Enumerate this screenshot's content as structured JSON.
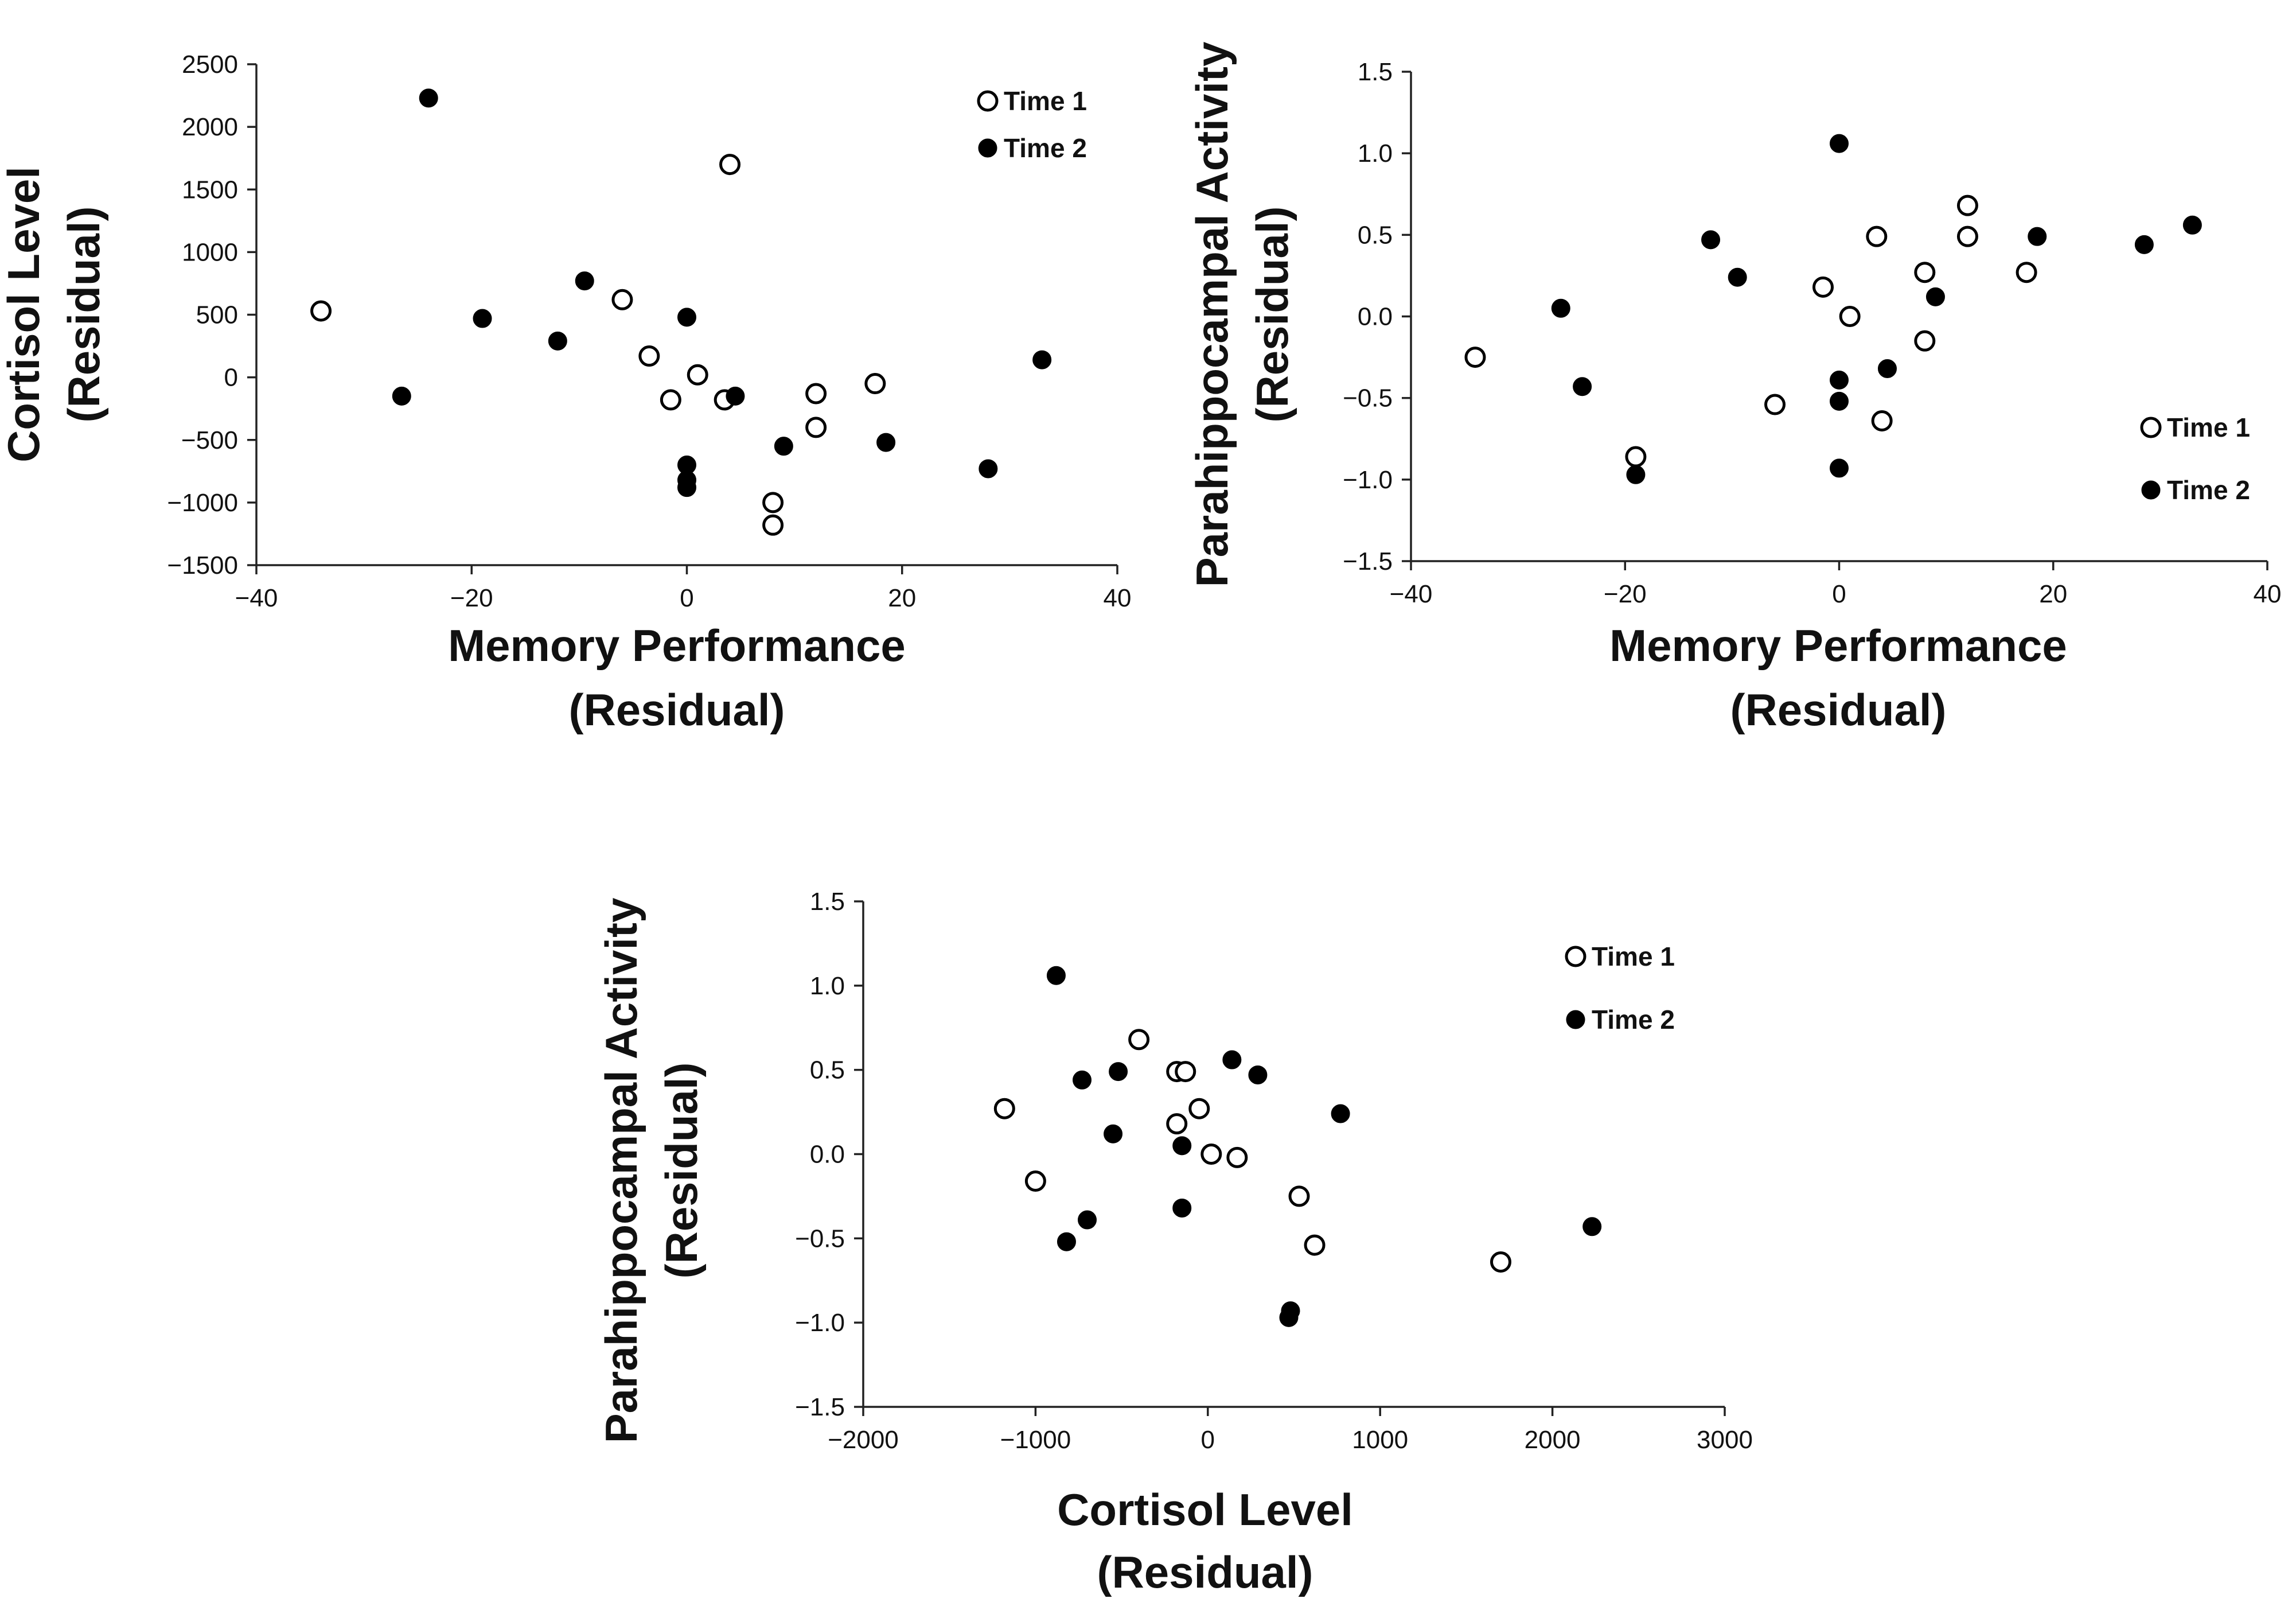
{
  "chart_data": [
    {
      "type": "scatter",
      "title": "",
      "xlabel_lines": [
        "Memory Performance",
        "(Residual)"
      ],
      "ylabel_lines": [
        "Cortisol Level",
        "(Residual)"
      ],
      "xlim": [
        -40,
        40
      ],
      "ylim": [
        -1500,
        2500
      ],
      "xticks": [
        -40,
        -20,
        0,
        20,
        40
      ],
      "yticks": [
        2500,
        2000,
        1500,
        1000,
        500,
        0,
        -500,
        -1000,
        -1500
      ],
      "xtick_labels": [
        "−40",
        "−20",
        "0",
        "20",
        "40"
      ],
      "ytick_labels": [
        "2500",
        "2000",
        "1500",
        "1000",
        "500",
        "0",
        "−500",
        "−1000",
        "−1500"
      ],
      "grid": false,
      "legend": "top-right",
      "series": [
        {
          "name": "Time 1",
          "marker": "open-circle",
          "points": [
            [
              -34,
              530
            ],
            [
              -6,
              620
            ],
            [
              -3.5,
              170
            ],
            [
              -1.5,
              -180
            ],
            [
              1,
              20
            ],
            [
              3.5,
              -180
            ],
            [
              4,
              1700
            ],
            [
              8,
              -1000
            ],
            [
              8,
              -1180
            ],
            [
              12,
              -130
            ],
            [
              12,
              -400
            ],
            [
              17.5,
              -50
            ]
          ]
        },
        {
          "name": "Time 2",
          "marker": "filled-circle",
          "points": [
            [
              -24,
              2230
            ],
            [
              -26.5,
              -150
            ],
            [
              -19,
              470
            ],
            [
              -12,
              290
            ],
            [
              -9.5,
              770
            ],
            [
              0,
              480
            ],
            [
              0,
              -700
            ],
            [
              0,
              -820
            ],
            [
              0,
              -880
            ],
            [
              4.5,
              -150
            ],
            [
              9,
              -550
            ],
            [
              18.5,
              -520
            ],
            [
              28,
              -730
            ],
            [
              33,
              140
            ]
          ]
        }
      ]
    },
    {
      "type": "scatter",
      "title": "",
      "xlabel_lines": [
        "Memory Performance",
        "(Residual)"
      ],
      "ylabel_lines": [
        "Parahippocampal Activity",
        "(Residual)"
      ],
      "xlim": [
        -40,
        40
      ],
      "ylim": [
        -1.5,
        1.5
      ],
      "xticks": [
        -40,
        -20,
        0,
        20,
        40
      ],
      "yticks": [
        1.5,
        1.0,
        0.5,
        0.0,
        -0.5,
        -1.0,
        -1.5
      ],
      "xtick_labels": [
        "−40",
        "−20",
        "0",
        "20",
        "40"
      ],
      "ytick_labels": [
        "1.5",
        "1.0",
        "0.5",
        "0.0",
        "−0.5",
        "−1.0",
        "−1.5"
      ],
      "grid": false,
      "legend": "bottom-right",
      "series": [
        {
          "name": "Time 1",
          "marker": "open-circle",
          "points": [
            [
              -34,
              -0.25
            ],
            [
              -19,
              -0.86
            ],
            [
              -6,
              -0.54
            ],
            [
              -1.5,
              0.18
            ],
            [
              1,
              0.0
            ],
            [
              3.5,
              0.49
            ],
            [
              4,
              -0.64
            ],
            [
              8,
              0.27
            ],
            [
              8,
              -0.15
            ],
            [
              12,
              0.68
            ],
            [
              12,
              0.49
            ],
            [
              17.5,
              0.27
            ]
          ]
        },
        {
          "name": "Time 2",
          "marker": "filled-circle",
          "points": [
            [
              -26,
              0.05
            ],
            [
              -24,
              -0.43
            ],
            [
              -19,
              -0.97
            ],
            [
              -12,
              0.47
            ],
            [
              -9.5,
              0.24
            ],
            [
              0,
              1.06
            ],
            [
              0,
              -0.39
            ],
            [
              0,
              -0.52
            ],
            [
              0,
              -0.93
            ],
            [
              4.5,
              -0.32
            ],
            [
              9,
              0.12
            ],
            [
              18.5,
              0.49
            ],
            [
              28.5,
              0.44
            ],
            [
              33,
              0.56
            ]
          ]
        }
      ]
    },
    {
      "type": "scatter",
      "title": "",
      "xlabel_lines": [
        "Cortisol Level",
        "(Residual)"
      ],
      "ylabel_lines": [
        "Parahippocampal Activity",
        "(Residual)"
      ],
      "xlim": [
        -2000,
        3000
      ],
      "ylim": [
        -1.5,
        1.5
      ],
      "xticks": [
        -2000,
        -1000,
        0,
        1000,
        2000,
        3000
      ],
      "yticks": [
        1.5,
        1.0,
        0.5,
        0.0,
        -0.5,
        -1.0,
        -1.5
      ],
      "xtick_labels": [
        "−2000",
        "−1000",
        "0",
        "1000",
        "2000",
        "3000"
      ],
      "ytick_labels": [
        "1.5",
        "1.0",
        "0.5",
        "0.0",
        "−0.5",
        "−1.0",
        "−1.5"
      ],
      "grid": false,
      "legend": "top-right",
      "series": [
        {
          "name": "Time 1",
          "marker": "open-circle",
          "points": [
            [
              -1180,
              0.27
            ],
            [
              -1000,
              -0.16
            ],
            [
              -400,
              0.68
            ],
            [
              -180,
              0.49
            ],
            [
              -130,
              0.49
            ],
            [
              -180,
              0.18
            ],
            [
              -50,
              0.27
            ],
            [
              20,
              0.0
            ],
            [
              170,
              -0.02
            ],
            [
              530,
              -0.25
            ],
            [
              620,
              -0.54
            ],
            [
              1700,
              -0.64
            ]
          ]
        },
        {
          "name": "Time 2",
          "marker": "filled-circle",
          "points": [
            [
              -880,
              1.06
            ],
            [
              -820,
              -0.52
            ],
            [
              -730,
              0.44
            ],
            [
              -700,
              -0.39
            ],
            [
              -520,
              0.49
            ],
            [
              -550,
              0.12
            ],
            [
              -150,
              0.05
            ],
            [
              -150,
              -0.32
            ],
            [
              140,
              0.56
            ],
            [
              290,
              0.47
            ],
            [
              470,
              -0.97
            ],
            [
              480,
              -0.93
            ],
            [
              770,
              0.24
            ],
            [
              2230,
              -0.43
            ]
          ]
        }
      ]
    }
  ]
}
